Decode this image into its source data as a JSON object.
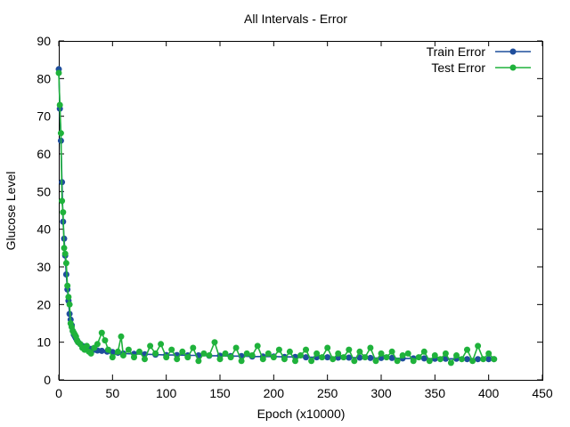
{
  "chart_data": {
    "type": "line",
    "title": "All Intervals - Error",
    "xlabel": "Epoch (x10000)",
    "ylabel": "Glucose Level",
    "xlim": [
      0,
      450
    ],
    "ylim": [
      0,
      90
    ],
    "xticks": [
      0,
      50,
      100,
      150,
      200,
      250,
      300,
      350,
      400,
      450
    ],
    "yticks": [
      0,
      10,
      20,
      30,
      40,
      50,
      60,
      70,
      80,
      90
    ],
    "grid": false,
    "legend_position": "top-right",
    "series": [
      {
        "name": "Train Error",
        "color": "#1f4e9c",
        "x": [
          0,
          1,
          2,
          3,
          4,
          5,
          6,
          7,
          8,
          9,
          10,
          11,
          12,
          13,
          14,
          15,
          16,
          17,
          18,
          20,
          22,
          24,
          26,
          28,
          30,
          33,
          36,
          40,
          45,
          50,
          55,
          60,
          70,
          80,
          90,
          100,
          110,
          120,
          130,
          140,
          150,
          160,
          170,
          180,
          190,
          200,
          210,
          220,
          230,
          240,
          250,
          260,
          270,
          280,
          290,
          300,
          310,
          320,
          330,
          340,
          350,
          360,
          370,
          380,
          390,
          400,
          405
        ],
        "y": [
          82.5,
          72,
          63.5,
          52.5,
          42,
          37.5,
          33,
          28,
          24,
          21,
          17.5,
          16,
          14.5,
          13,
          12,
          11.5,
          11,
          10.5,
          10,
          9.5,
          9,
          8.8,
          8.5,
          8.3,
          8.2,
          8.0,
          7.8,
          7.7,
          7.5,
          7.4,
          7.2,
          7.0,
          6.9,
          6.8,
          6.7,
          6.6,
          6.6,
          6.5,
          6.5,
          6.4,
          6.4,
          6.3,
          6.3,
          6.2,
          6.2,
          6.2,
          6.1,
          6.1,
          6.0,
          6.0,
          6.0,
          5.9,
          5.9,
          5.9,
          5.8,
          5.8,
          5.8,
          5.7,
          5.7,
          5.7,
          5.6,
          5.6,
          5.6,
          5.5,
          5.5,
          5.5,
          5.5
        ]
      },
      {
        "name": "Test Error",
        "color": "#1fb23b",
        "x": [
          0,
          1,
          2,
          3,
          4,
          5,
          6,
          7,
          8,
          9,
          10,
          11,
          12,
          13,
          14,
          15,
          16,
          17,
          18,
          20,
          22,
          24,
          26,
          28,
          30,
          33,
          36,
          40,
          43,
          46,
          50,
          55,
          58,
          60,
          65,
          70,
          75,
          80,
          85,
          90,
          95,
          100,
          105,
          110,
          115,
          120,
          125,
          130,
          135,
          140,
          145,
          150,
          155,
          160,
          165,
          170,
          175,
          180,
          185,
          190,
          195,
          200,
          205,
          210,
          215,
          220,
          225,
          230,
          235,
          240,
          245,
          250,
          255,
          260,
          265,
          270,
          275,
          280,
          285,
          290,
          295,
          300,
          305,
          310,
          315,
          320,
          325,
          330,
          335,
          340,
          345,
          350,
          355,
          360,
          365,
          370,
          375,
          380,
          385,
          390,
          395,
          400,
          405
        ],
        "y": [
          81.5,
          73,
          65.5,
          47.5,
          44.5,
          35,
          33.5,
          31,
          25,
          22,
          20,
          15,
          14,
          13,
          12.5,
          12,
          11.5,
          10.5,
          10,
          9.5,
          8.5,
          8,
          9,
          7.5,
          7,
          8.5,
          9.5,
          12.5,
          10.5,
          8,
          6,
          7.5,
          11.5,
          6.5,
          8,
          6,
          7.5,
          5.5,
          9,
          7,
          9.5,
          6,
          8,
          5.5,
          7.5,
          6,
          8.5,
          5,
          7,
          6.5,
          10,
          5.5,
          7,
          6,
          8.5,
          5,
          7,
          6.5,
          9,
          5.5,
          7,
          6,
          8,
          5.5,
          7.5,
          5,
          6.5,
          8,
          5,
          7,
          6,
          8.5,
          5.5,
          7,
          6,
          8,
          5,
          7.5,
          6,
          8.5,
          5,
          7,
          6,
          7.5,
          5,
          6.5,
          7,
          5,
          6,
          7.5,
          5,
          6.5,
          5.5,
          7,
          4.5,
          6.5,
          5.5,
          8,
          5,
          9,
          5.5,
          7,
          5.5
        ]
      }
    ]
  }
}
